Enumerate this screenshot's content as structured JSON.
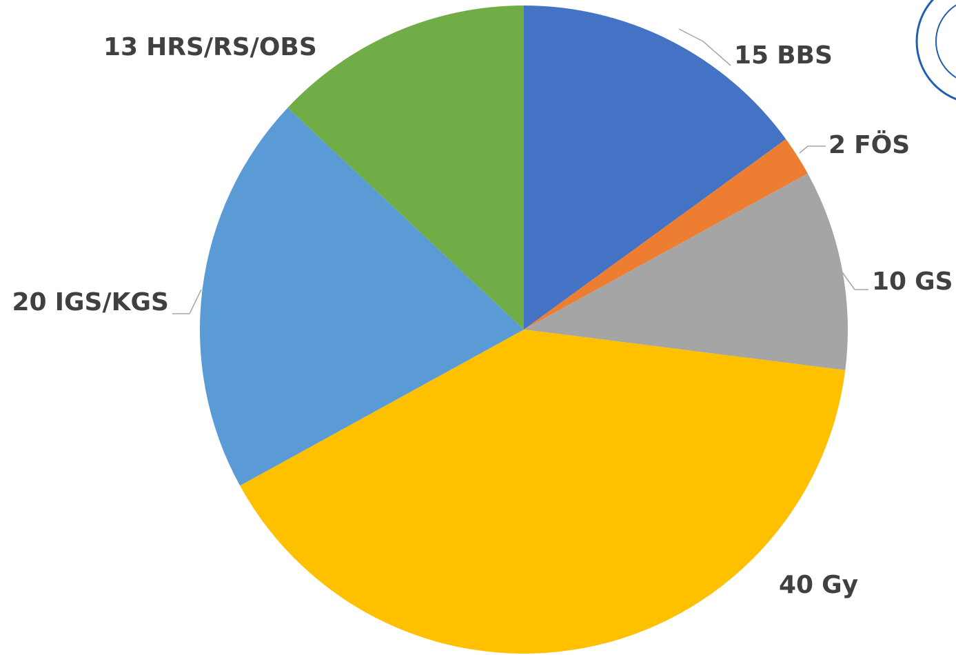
{
  "chart_data": {
    "type": "pie",
    "categories": [
      "BBS",
      "FÖS",
      "GS",
      "Gy",
      "IGS/KGS",
      "HRS/RS/OBS"
    ],
    "values": [
      15,
      2,
      10,
      40,
      20,
      13
    ],
    "colors": [
      "#4472c4",
      "#ed7d31",
      "#a5a5a5",
      "#ffc000",
      "#5b9bd5",
      "#70ad47"
    ]
  }
}
